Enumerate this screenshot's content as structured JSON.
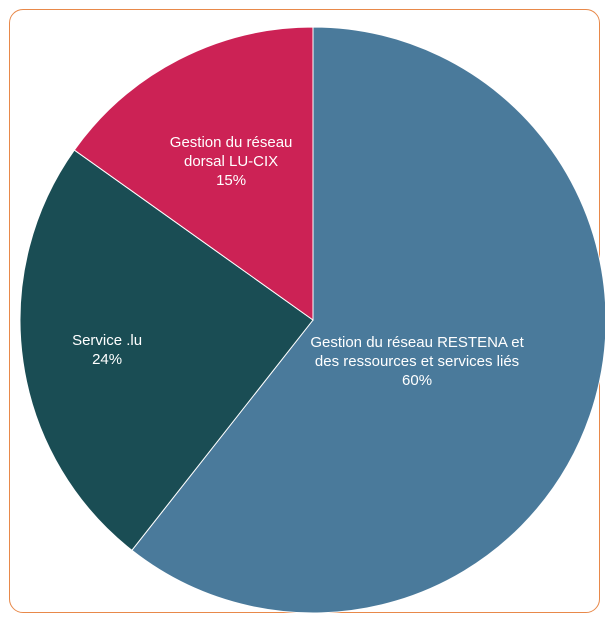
{
  "chart_data": {
    "type": "pie",
    "title": "",
    "legend": "none",
    "start_angle_deg": 0,
    "direction": "clockwise",
    "slices": [
      {
        "name": "Gestion du réseau RESTENA et des ressources et services liés",
        "value": 60,
        "pct_label": "60%",
        "label_lines": [
          "Gestion du réseau RESTENA et",
          "des ressources et services liés"
        ],
        "color": "#4a7a9b"
      },
      {
        "name": "Service .lu",
        "value": 24,
        "pct_label": "24%",
        "label_lines": [
          "Service .lu"
        ],
        "color": "#1a4d54"
      },
      {
        "name": "Gestion du réseau dorsal LU-CIX",
        "value": 15,
        "pct_label": "15%",
        "label_lines": [
          "Gestion du réseau",
          "dorsal LU-CIX"
        ],
        "color": "#cc2255"
      }
    ]
  },
  "colors": {
    "frame_border": "#e8894a",
    "label_text": "#ffffff",
    "slice_separator": "#ffffff"
  }
}
